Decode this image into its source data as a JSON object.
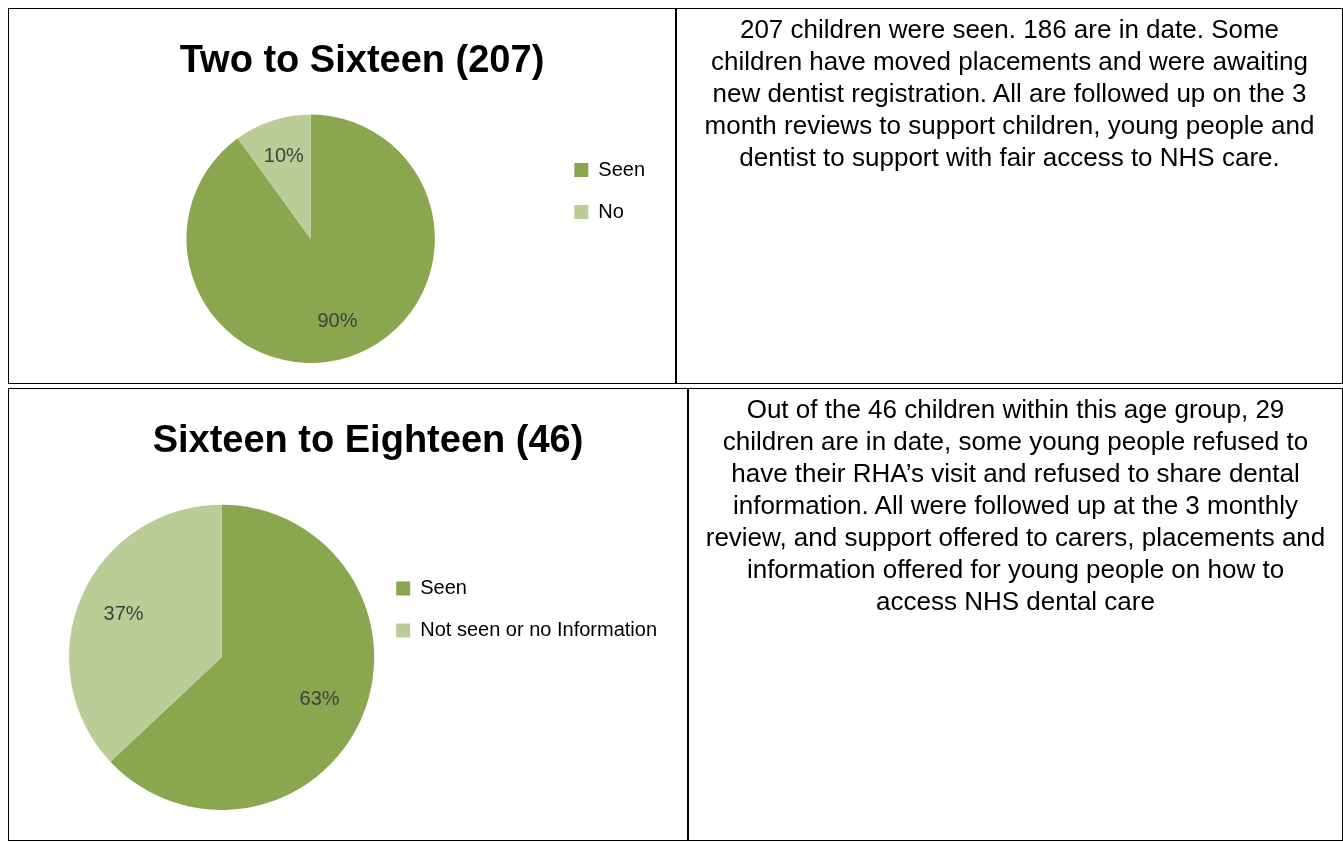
{
  "chart_data": [
    {
      "type": "pie",
      "title": "Two to Sixteen (207)",
      "categories": [
        "Seen",
        "No"
      ],
      "values": [
        90,
        10
      ],
      "colors": [
        "#8aa74f",
        "#bacd97"
      ],
      "value_labels": [
        "90%",
        "10%"
      ],
      "legend": "right"
    },
    {
      "type": "other",
      "annotations": [
        "207 children were seen. 186 are in date. Some children have moved placements and were awaiting new dentist registration. All are followed up on the 3 month reviews to support children, young people and dentist to support with  fair access to NHS care."
      ]
    },
    {
      "type": "pie",
      "title": "Sixteen to Eighteen (46)",
      "categories": [
        "Seen",
        "Not seen or no Information"
      ],
      "values": [
        63,
        37
      ],
      "colors": [
        "#8aa74f",
        "#bacd97"
      ],
      "value_labels": [
        "63%",
        "37%"
      ],
      "legend": "right"
    },
    {
      "type": "other",
      "annotations": [
        "Out of the 46 children within this age group, 29 children are in date, some young people refused to have their RHA’s visit and refused to share dental information. All were followed up at the 3 monthly review, and support offered to carers, placements and information offered for young people on how to access NHS dental care"
      ]
    }
  ]
}
